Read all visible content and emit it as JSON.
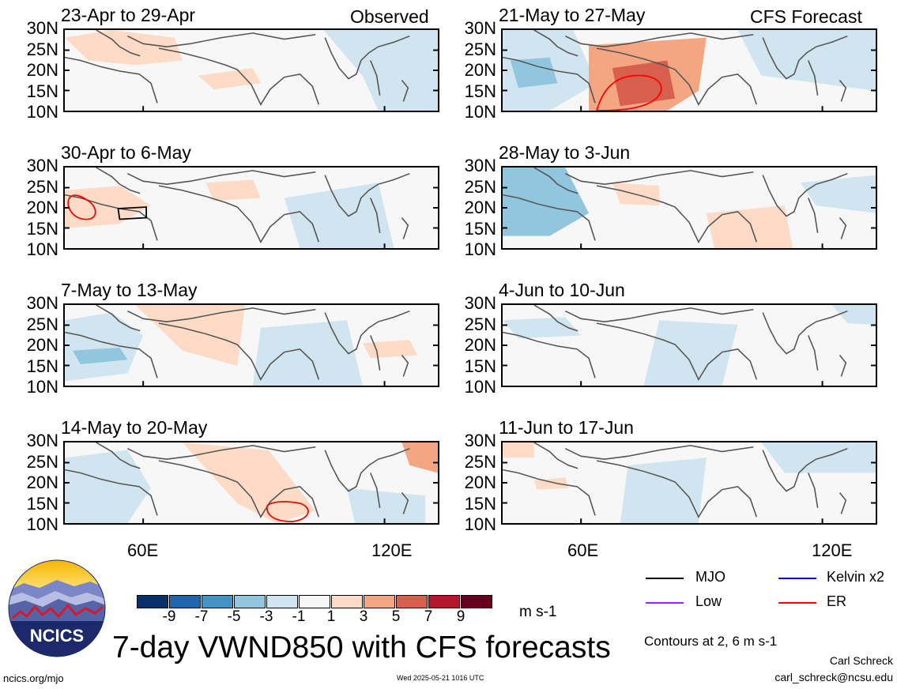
{
  "column_titles": {
    "left": "Observed",
    "right": "CFS Forecast"
  },
  "panels": [
    {
      "title": "23-Apr to 29-Apr",
      "column": "left",
      "row": 0
    },
    {
      "title": "30-Apr to 6-May",
      "column": "left",
      "row": 1
    },
    {
      "title": "7-May to 13-May",
      "column": "left",
      "row": 2
    },
    {
      "title": "14-May to 20-May",
      "column": "left",
      "row": 3
    },
    {
      "title": "21-May to 27-May",
      "column": "right",
      "row": 0
    },
    {
      "title": "28-May to 3-Jun",
      "column": "right",
      "row": 1
    },
    {
      "title": "4-Jun to 10-Jun",
      "column": "right",
      "row": 2
    },
    {
      "title": "11-Jun to 17-Jun",
      "column": "right",
      "row": 3
    }
  ],
  "lat_labels": [
    "30N",
    "25N",
    "20N",
    "15N",
    "10N"
  ],
  "lon_labels": [
    "60E",
    "120E"
  ],
  "colorbar": {
    "colors": [
      "#08306b",
      "#2166ac",
      "#4393c3",
      "#92c5de",
      "#d1e5f0",
      "#f7f7f7",
      "#fddbc7",
      "#f4a582",
      "#d6604d",
      "#b2182b",
      "#67001f"
    ],
    "labels": [
      "-9",
      "-7",
      "-5",
      "-3",
      "-1",
      "1",
      "3",
      "5",
      "7",
      "9"
    ],
    "unit": "m s-1"
  },
  "legend": [
    {
      "label": "MJO",
      "color": "#000000"
    },
    {
      "label": "Kelvin x2",
      "color": "#0000ff"
    },
    {
      "label": "Low",
      "color": "#a020f0"
    },
    {
      "label": "ER",
      "color": "#ff0000"
    }
  ],
  "contour_note": "Contours at 2, 6 m s-1",
  "main_title": "7-day VWND850 with CFS forecasts",
  "logo_text": "NCICS",
  "url": "ncics.org/mjo",
  "timestamp": "Wed 2025-05-21 1016 UTC",
  "author": "Carl Schreck",
  "email": "carl_schreck@ncsu.edu"
}
